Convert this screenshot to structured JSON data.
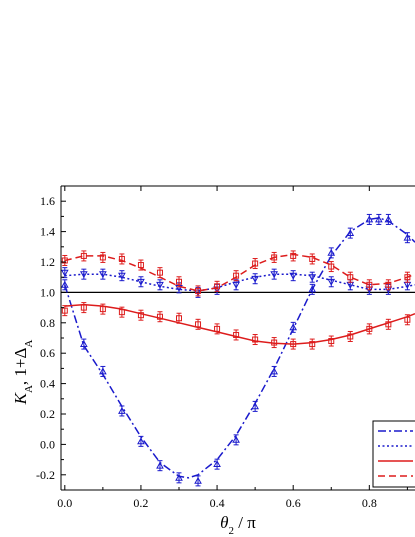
{
  "chart_data": {
    "type": "line",
    "xlabel_symbol": "θ",
    "xlabel_sub": "2",
    "xlabel_rest": " / π",
    "ylabel_main": "K",
    "ylabel_sub1": "A",
    "ylabel_mid": ", 1+Δ",
    "ylabel_sub2": "A",
    "xlim": [
      -0.01,
      0.92
    ],
    "ylim": [
      -0.3,
      1.7
    ],
    "x_ticks": [
      0.0,
      0.2,
      0.4,
      0.6,
      0.8
    ],
    "x_tick_labels": [
      "0.0",
      "0.2",
      "0.4",
      "0.6",
      "0.8"
    ],
    "y_ticks": [
      -0.2,
      0.0,
      0.2,
      0.4,
      0.6,
      0.8,
      1.0,
      1.2,
      1.4,
      1.6
    ],
    "y_tick_labels": [
      "-0.2",
      "0.0",
      "0.2",
      "0.4",
      "0.6",
      "0.8",
      "1.0",
      "1.2",
      "1.4",
      "1.6"
    ],
    "reference_line": {
      "y": 1.0,
      "color": "#000000"
    },
    "series": [
      {
        "color": "#1a1acc",
        "dash": "dashdot",
        "marker": "triangle",
        "curve_x": [
          0.0,
          0.05,
          0.1,
          0.15,
          0.2,
          0.25,
          0.3,
          0.325,
          0.35,
          0.4,
          0.45,
          0.5,
          0.55,
          0.6,
          0.65,
          0.7,
          0.75,
          0.8,
          0.825,
          0.85,
          0.9,
          0.92
        ],
        "curve_y": [
          1.05,
          0.65,
          0.46,
          0.25,
          0.05,
          -0.12,
          -0.21,
          -0.22,
          -0.2,
          -0.1,
          0.06,
          0.27,
          0.5,
          0.76,
          1.02,
          1.24,
          1.4,
          1.48,
          1.49,
          1.47,
          1.38,
          1.33
        ],
        "x": [
          0.0,
          0.05,
          0.1,
          0.15,
          0.2,
          0.25,
          0.3,
          0.35,
          0.4,
          0.45,
          0.5,
          0.55,
          0.6,
          0.65,
          0.7,
          0.75,
          0.8,
          0.825,
          0.85,
          0.9
        ],
        "y": [
          1.05,
          0.66,
          0.48,
          0.22,
          0.02,
          -0.14,
          -0.22,
          -0.24,
          -0.13,
          0.03,
          0.25,
          0.48,
          0.77,
          1.02,
          1.26,
          1.39,
          1.48,
          1.48,
          1.48,
          1.36
        ]
      },
      {
        "color": "#1a1acc",
        "dash": "dotted",
        "marker": "inverted-triangle",
        "curve_x": [
          0.0,
          0.05,
          0.1,
          0.15,
          0.2,
          0.25,
          0.3,
          0.35,
          0.4,
          0.45,
          0.5,
          0.55,
          0.6,
          0.65,
          0.7,
          0.75,
          0.8,
          0.85,
          0.9,
          0.92
        ],
        "curve_y": [
          1.11,
          1.12,
          1.12,
          1.1,
          1.07,
          1.04,
          1.02,
          1.01,
          1.03,
          1.07,
          1.1,
          1.12,
          1.12,
          1.11,
          1.08,
          1.05,
          1.02,
          1.02,
          1.04,
          1.05
        ],
        "x": [
          0.0,
          0.05,
          0.1,
          0.15,
          0.2,
          0.25,
          0.3,
          0.35,
          0.4,
          0.45,
          0.5,
          0.55,
          0.6,
          0.65,
          0.7,
          0.75,
          0.8,
          0.85,
          0.9
        ],
        "y": [
          1.13,
          1.12,
          1.12,
          1.11,
          1.07,
          1.05,
          1.03,
          1.0,
          1.02,
          1.05,
          1.09,
          1.12,
          1.11,
          1.1,
          1.07,
          1.05,
          1.02,
          1.02,
          1.05
        ]
      },
      {
        "color": "#dd1c1c",
        "dash": "solid",
        "marker": "square",
        "curve_x": [
          0.0,
          0.05,
          0.1,
          0.15,
          0.2,
          0.25,
          0.3,
          0.35,
          0.4,
          0.45,
          0.5,
          0.55,
          0.6,
          0.65,
          0.7,
          0.75,
          0.8,
          0.85,
          0.9,
          0.92
        ],
        "curve_y": [
          0.91,
          0.92,
          0.91,
          0.89,
          0.86,
          0.83,
          0.8,
          0.77,
          0.74,
          0.71,
          0.68,
          0.665,
          0.66,
          0.67,
          0.69,
          0.72,
          0.76,
          0.8,
          0.84,
          0.86
        ],
        "x": [
          0.0,
          0.05,
          0.1,
          0.15,
          0.2,
          0.25,
          0.3,
          0.35,
          0.4,
          0.45,
          0.5,
          0.55,
          0.6,
          0.65,
          0.7,
          0.75,
          0.8,
          0.85,
          0.9
        ],
        "y": [
          0.88,
          0.9,
          0.89,
          0.87,
          0.85,
          0.84,
          0.83,
          0.79,
          0.76,
          0.72,
          0.69,
          0.67,
          0.66,
          0.66,
          0.68,
          0.71,
          0.76,
          0.79,
          0.82
        ]
      },
      {
        "color": "#dd1c1c",
        "dash": "dashed",
        "marker": "square",
        "curve_x": [
          0.0,
          0.05,
          0.1,
          0.15,
          0.2,
          0.25,
          0.3,
          0.35,
          0.4,
          0.45,
          0.5,
          0.55,
          0.6,
          0.65,
          0.7,
          0.75,
          0.8,
          0.85,
          0.9,
          0.92
        ],
        "curve_y": [
          1.21,
          1.24,
          1.24,
          1.21,
          1.16,
          1.1,
          1.04,
          1.01,
          1.03,
          1.1,
          1.18,
          1.23,
          1.25,
          1.23,
          1.18,
          1.1,
          1.05,
          1.06,
          1.1,
          1.12
        ],
        "x": [
          0.0,
          0.05,
          0.1,
          0.15,
          0.2,
          0.25,
          0.3,
          0.35,
          0.4,
          0.45,
          0.5,
          0.55,
          0.6,
          0.65,
          0.7,
          0.75,
          0.8,
          0.85,
          0.9
        ],
        "y": [
          1.21,
          1.24,
          1.23,
          1.22,
          1.18,
          1.13,
          1.07,
          1.01,
          1.04,
          1.11,
          1.19,
          1.23,
          1.24,
          1.22,
          1.17,
          1.1,
          1.05,
          1.05,
          1.1
        ]
      }
    ],
    "legend": {
      "placement": "bottom-right",
      "entries": [
        {
          "series": 0
        },
        {
          "series": 1
        },
        {
          "series": 2
        },
        {
          "series": 3
        }
      ]
    }
  }
}
